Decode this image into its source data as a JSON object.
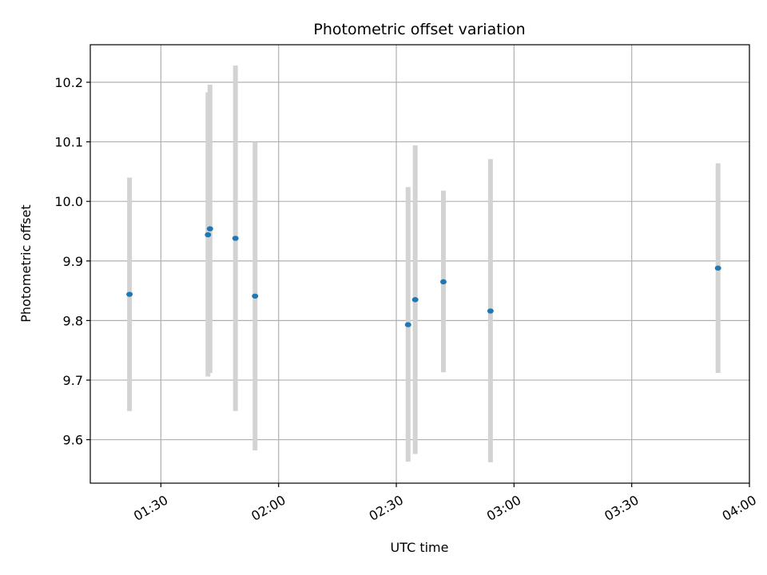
{
  "chart_data": {
    "type": "scatter",
    "title": "Photometric offset variation",
    "xlabel": "UTC time",
    "ylabel": "Photometric offset",
    "grid": true,
    "xlim": [
      "01:12",
      "04:00"
    ],
    "ylim": [
      9.527,
      10.263
    ],
    "x_ticks": [
      "01:30",
      "02:00",
      "02:30",
      "03:00",
      "03:30",
      "04:00"
    ],
    "y_ticks": [
      "9.6",
      "9.7",
      "9.8",
      "9.9",
      "10.0",
      "10.1",
      "10.2"
    ],
    "colors": {
      "points": "#1f77b4",
      "errorbars": "#d3d3d3",
      "grid": "#b0b0b0"
    },
    "points": [
      {
        "x": "01:22",
        "y": 9.844,
        "ymin": 9.648,
        "ymax": 10.04
      },
      {
        "x": "01:42",
        "y": 9.944,
        "ymin": 9.706,
        "ymax": 10.183
      },
      {
        "x": "01:42",
        "y": 9.954,
        "ymin": 9.712,
        "ymax": 10.196
      },
      {
        "x": "01:49",
        "y": 9.938,
        "ymin": 9.648,
        "ymax": 10.228
      },
      {
        "x": "01:54",
        "y": 9.841,
        "ymin": 9.582,
        "ymax": 10.1
      },
      {
        "x": "02:33",
        "y": 9.793,
        "ymin": 9.563,
        "ymax": 10.024
      },
      {
        "x": "02:34",
        "y": 9.835,
        "ymin": 9.576,
        "ymax": 10.094
      },
      {
        "x": "02:42",
        "y": 9.865,
        "ymin": 9.713,
        "ymax": 10.018
      },
      {
        "x": "02:54",
        "y": 9.816,
        "ymin": 9.562,
        "ymax": 10.071
      },
      {
        "x": "03:52",
        "y": 9.888,
        "ymin": 9.712,
        "ymax": 10.064
      }
    ]
  }
}
